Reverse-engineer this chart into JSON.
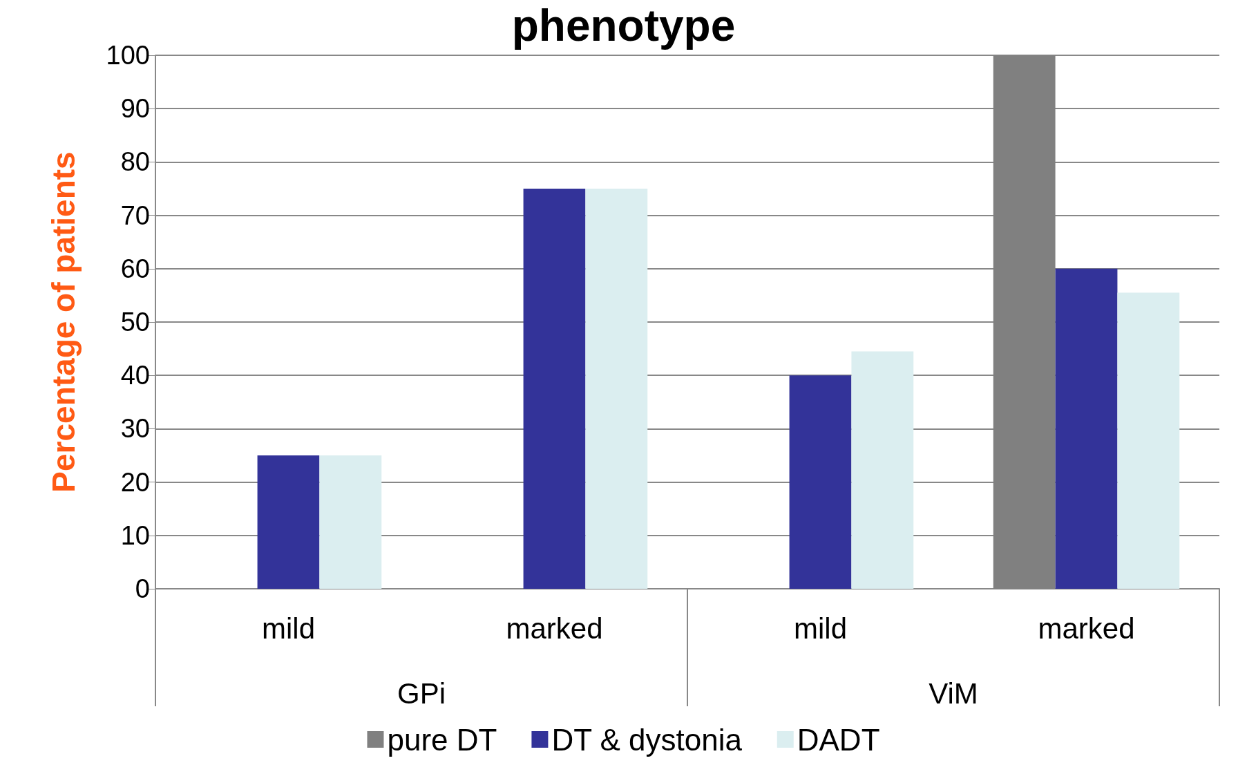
{
  "chart_data": {
    "type": "bar",
    "title": "phenotype",
    "ylabel": "Percentage of patients",
    "categories": [
      "mild",
      "marked",
      "mild",
      "marked"
    ],
    "annotations": [
      "GPi",
      "ViM"
    ],
    "series": [
      {
        "name": "pure DT",
        "color": "#808080",
        "values": [
          0,
          0,
          0,
          100
        ]
      },
      {
        "name": "DT & dystonia",
        "color": "#333399",
        "values": [
          25,
          75,
          40,
          60
        ]
      },
      {
        "name": "DADT",
        "color": "#dbeef0",
        "values": [
          25,
          75,
          44.5,
          55.5
        ]
      }
    ],
    "ylim": [
      0,
      100
    ],
    "yticks": [
      0,
      10,
      20,
      30,
      40,
      50,
      60,
      70,
      80,
      90,
      100
    ],
    "grid": "y",
    "legend": "bottom"
  }
}
